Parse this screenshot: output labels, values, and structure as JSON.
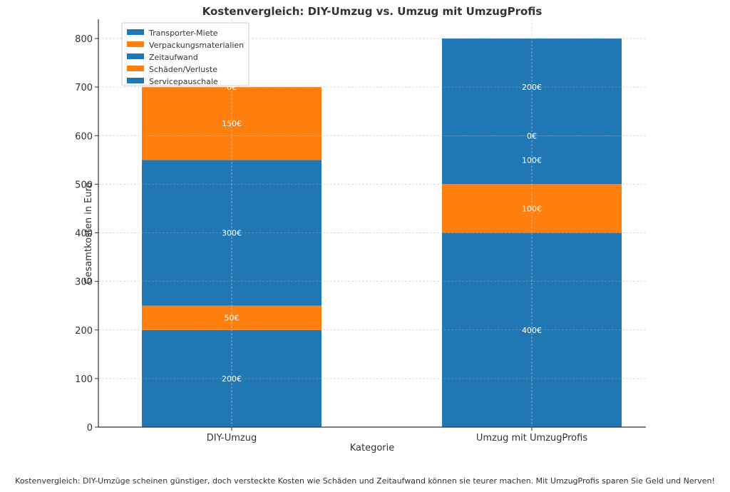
{
  "chart_data": {
    "type": "bar",
    "stacked": true,
    "title": "Kostenvergleich: DIY-Umzug vs. Umzug mit UmzugProfis",
    "xlabel": "Kategorie",
    "ylabel": "Gesamtkosten in Euro",
    "ylim": [
      0,
      840
    ],
    "yticks": [
      0,
      100,
      200,
      300,
      400,
      500,
      600,
      700,
      800
    ],
    "grid": true,
    "legend_position": "top-left",
    "categories": [
      "DIY-Umzug",
      "Umzug mit UmzugProfis"
    ],
    "series": [
      {
        "name": "Transporter-Miete",
        "color": "#1f77b4",
        "values": [
          200,
          400
        ],
        "labels": [
          "200€",
          "400€"
        ]
      },
      {
        "name": "Verpackungsmaterialien",
        "color": "#ff7f0e",
        "values": [
          50,
          100
        ],
        "labels": [
          "50€",
          "100€"
        ]
      },
      {
        "name": "Zeitaufwand",
        "color": "#1f77b4",
        "values": [
          300,
          100
        ],
        "labels": [
          "300€",
          "100€"
        ]
      },
      {
        "name": "Schäden/Verluste",
        "color": "#ff7f0e",
        "values": [
          150,
          0
        ],
        "labels": [
          "150€",
          "0€"
        ]
      },
      {
        "name": "Servicepauschale",
        "color": "#1f77b4",
        "values": [
          0,
          200
        ],
        "labels": [
          "0€",
          "200€"
        ]
      }
    ]
  },
  "caption": "Kostenvergleich: DIY-Umzüge scheinen günstiger, doch versteckte Kosten wie Schäden und Zeitaufwand können sie teurer machen. Mit UmzugProfis sparen Sie Geld und Nerven!"
}
